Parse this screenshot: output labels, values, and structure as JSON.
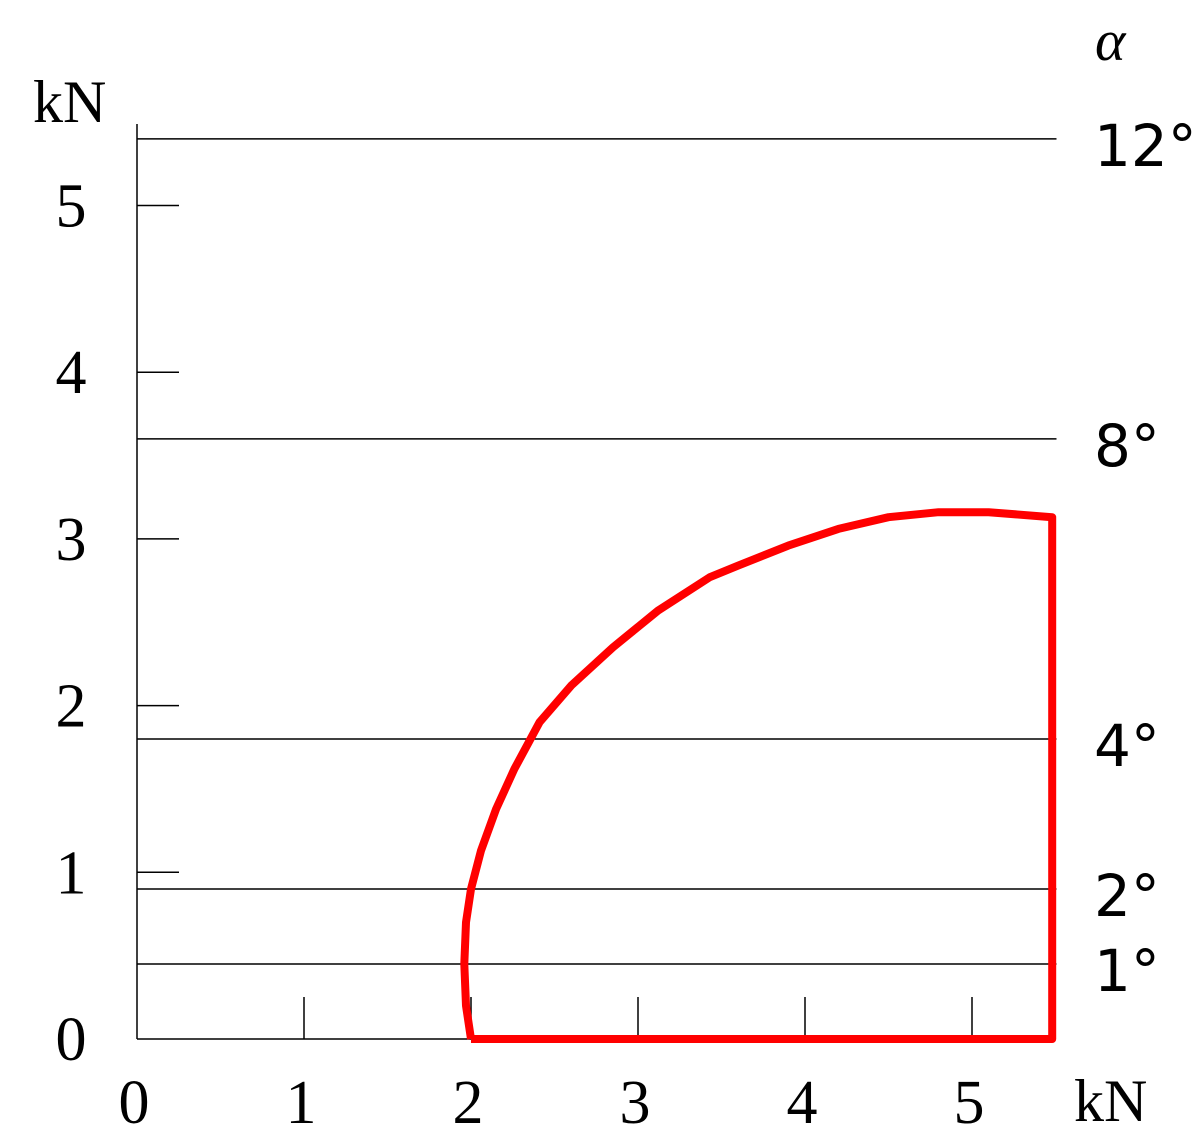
{
  "chart_data": {
    "type": "line",
    "x_axis": {
      "ticks": [
        0,
        1,
        2,
        3,
        4,
        5
      ],
      "tick_labels": [
        "0",
        "1",
        "2",
        "3",
        "4",
        "5"
      ],
      "unit": "kN",
      "range": [
        0,
        5.5
      ]
    },
    "y_axis": {
      "ticks": [
        0,
        1,
        2,
        3,
        4,
        5
      ],
      "tick_labels": [
        "0",
        "1",
        "2",
        "3",
        "4",
        "5"
      ],
      "unit": "kN",
      "range": [
        0,
        5.4
      ]
    },
    "right_axis": {
      "title": "α",
      "reference_lines": [
        {
          "label": "1°",
          "value": 1,
          "y": 0.45
        },
        {
          "label": "2°",
          "value": 2,
          "y": 0.9
        },
        {
          "label": "4°",
          "value": 4,
          "y": 1.8
        },
        {
          "label": "8°",
          "value": 8,
          "y": 3.6
        },
        {
          "label": "12°",
          "value": 12,
          "y": 5.4
        }
      ]
    },
    "series": [
      {
        "color": "#ff0000",
        "x": [
          2.0,
          1.97,
          1.96,
          1.97,
          2.0,
          2.06,
          2.15,
          2.26,
          2.41,
          2.6,
          2.85,
          3.12,
          3.43,
          3.6,
          3.9,
          4.2,
          4.5,
          4.8,
          5.1,
          5.48,
          5.48,
          2.0
        ],
        "y": [
          0.0,
          0.2,
          0.45,
          0.7,
          0.9,
          1.13,
          1.38,
          1.62,
          1.9,
          2.12,
          2.35,
          2.57,
          2.77,
          2.84,
          2.96,
          3.06,
          3.13,
          3.16,
          3.16,
          3.13,
          0.0,
          0.0
        ]
      }
    ],
    "grid": false
  }
}
